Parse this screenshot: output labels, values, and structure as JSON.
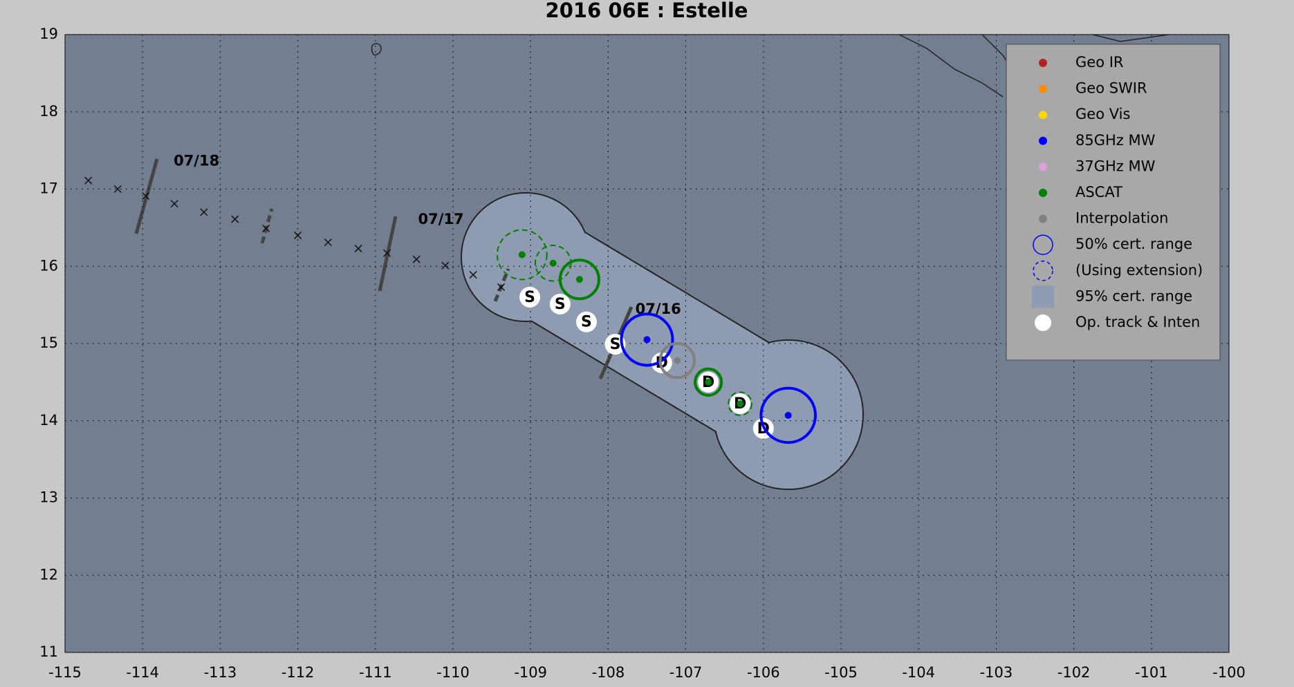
{
  "chart_data": {
    "type": "scatter",
    "title": "2016  06E :  Estelle",
    "xlim": [
      -115,
      -100
    ],
    "xticks": [
      -115,
      -114,
      -113,
      -112,
      -111,
      -110,
      -109,
      -108,
      -107,
      -106,
      -105,
      -104,
      -103,
      -102,
      -101,
      -100
    ],
    "ylim": [
      11,
      19
    ],
    "yticks": [
      11,
      12,
      13,
      14,
      15,
      16,
      17,
      18,
      19
    ],
    "grid": true,
    "track": {
      "x": [
        -114.7,
        -114.32,
        -113.96,
        -113.59,
        -113.21,
        -112.81,
        -112.41,
        -112.0,
        -111.61,
        -111.22,
        -110.85,
        -110.47,
        -110.1,
        -109.74,
        -109.38
      ],
      "y": [
        17.11,
        17.0,
        16.91,
        16.81,
        16.7,
        16.61,
        16.49,
        16.4,
        16.31,
        16.23,
        16.17,
        16.09,
        16.01,
        15.89,
        15.73
      ]
    },
    "date_labels": [
      {
        "label": "07/18",
        "x": -113.6,
        "y": 17.36
      },
      {
        "label": "07/17",
        "x": -110.45,
        "y": 16.6
      },
      {
        "label": "07/16",
        "x": -107.65,
        "y": 15.44
      }
    ],
    "op_track": {
      "x": [
        -109.01,
        -108.62,
        -108.28,
        -107.91,
        -107.31,
        -106.71,
        -106.3,
        -106.0
      ],
      "y": [
        15.6,
        15.51,
        15.28,
        14.99,
        14.75,
        14.5,
        14.22,
        13.9
      ],
      "labels": [
        "S",
        "S",
        "S",
        "S",
        "D",
        "D",
        "D",
        "D"
      ]
    },
    "fixes": [
      {
        "source": "ASCAT",
        "x": -109.11,
        "y": 16.15,
        "radius": 0.32,
        "extension": true
      },
      {
        "source": "ASCAT",
        "x": -108.71,
        "y": 16.04,
        "radius": 0.23,
        "extension": true
      },
      {
        "source": "ASCAT",
        "x": -108.37,
        "y": 15.83,
        "radius": 0.25,
        "extension": false
      },
      {
        "source": "85GHz MW",
        "x": -107.5,
        "y": 15.05,
        "radius": 0.33,
        "extension": false
      },
      {
        "source": "Interpolation",
        "x": -107.11,
        "y": 14.78,
        "radius": 0.22,
        "extension": false
      },
      {
        "source": "ASCAT",
        "x": -106.71,
        "y": 14.5,
        "radius": 0.17,
        "extension": false
      },
      {
        "source": "ASCAT",
        "x": -106.3,
        "y": 14.22,
        "radius": 0.15,
        "extension": true
      },
      {
        "source": "85GHz MW",
        "x": -105.68,
        "y": 14.07,
        "radius": 0.35,
        "extension": false
      }
    ],
    "legend": [
      {
        "name": "Geo IR",
        "color": "#b22222",
        "marker": "dot"
      },
      {
        "name": "Geo SWIR",
        "color": "#ff8c00",
        "marker": "dot"
      },
      {
        "name": "Geo Vis",
        "color": "#ffd700",
        "marker": "dot"
      },
      {
        "name": "85GHz MW",
        "color": "#0000ff",
        "marker": "dot"
      },
      {
        "name": "37GHz MW",
        "color": "#dda0dd",
        "marker": "dot"
      },
      {
        "name": "ASCAT",
        "color": "#008000",
        "marker": "dot"
      },
      {
        "name": "Interpolation",
        "color": "#808080",
        "marker": "dot"
      },
      {
        "name": "50% cert. range",
        "color": "#0000ff",
        "marker": "circle"
      },
      {
        "name": "(Using extension)",
        "color": "#0000ff",
        "marker": "dashed-circle"
      },
      {
        "name": "95% cert. range",
        "color": "#8f9bb0",
        "marker": "square"
      },
      {
        "name": "Op. track & Inten",
        "color": "#ffffff",
        "marker": "big-dot"
      }
    ]
  }
}
